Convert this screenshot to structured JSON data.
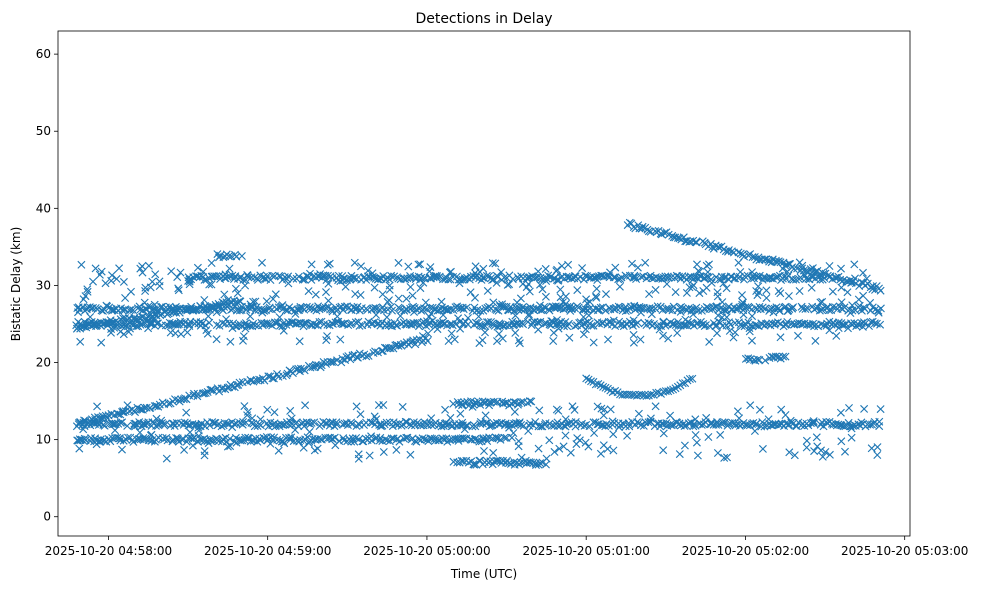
{
  "chart_data": {
    "type": "scatter",
    "title": "Detections in Delay",
    "xlabel": "Time (UTC)",
    "ylabel": "Bistatic Delay (km)",
    "marker": "x",
    "marker_color": "#1f77b4",
    "xlim": [
      "2025-10-20 04:57:41",
      "2025-10-20 05:03:02"
    ],
    "ylim": [
      -2.5,
      63
    ],
    "x_ticks": [
      "2025-10-20 04:58:00",
      "2025-10-20 04:59:00",
      "2025-10-20 05:00:00",
      "2025-10-20 05:01:00",
      "2025-10-20 05:02:00",
      "2025-10-20 05:03:00"
    ],
    "y_ticks": [
      0,
      10,
      20,
      30,
      40,
      50,
      60
    ],
    "grid": false,
    "data_time_range": [
      "2025-10-20 04:57:48",
      "2025-10-20 05:02:51"
    ],
    "tracks": [
      {
        "start": [
          "2025-10-20 04:57:48",
          12.0
        ],
        "end": [
          "2025-10-20 05:00:00",
          23.0
        ]
      },
      {
        "start": [
          "2025-10-20 05:01:15",
          38.0
        ],
        "end": [
          "2025-10-20 05:02:51",
          29.5
        ]
      },
      {
        "start": [
          "2025-10-20 04:57:48",
          24.5
        ],
        "end": [
          "2025-10-20 04:58:50",
          28.0
        ]
      },
      {
        "start": [
          "2025-10-20 04:57:48",
          12.0
        ],
        "end": [
          "2025-10-20 05:02:51",
          12.0
        ]
      },
      {
        "start": [
          "2025-10-20 04:57:48",
          10.0
        ],
        "end": [
          "2025-10-20 05:00:30",
          10.0
        ]
      },
      {
        "start": [
          "2025-10-20 04:57:48",
          25.0
        ],
        "end": [
          "2025-10-20 05:02:51",
          25.0
        ]
      },
      {
        "start": [
          "2025-10-20 04:57:48",
          27.0
        ],
        "end": [
          "2025-10-20 05:02:51",
          27.0
        ]
      },
      {
        "start": [
          "2025-10-20 04:58:30",
          31.0
        ],
        "end": [
          "2025-10-20 05:02:30",
          31.0
        ]
      },
      {
        "start": [
          "2025-10-20 05:00:10",
          14.7
        ],
        "end": [
          "2025-10-20 05:00:40",
          14.7
        ]
      },
      {
        "start": [
          "2025-10-20 05:00:10",
          7.0
        ],
        "end": [
          "2025-10-20 05:00:45",
          7.0
        ]
      },
      {
        "start": [
          "2025-10-20 05:02:00",
          20.5
        ],
        "end": [
          "2025-10-20 05:02:15",
          20.5
        ]
      },
      {
        "start": [
          "2025-10-20 04:58:40",
          33.8
        ],
        "end": [
          "2025-10-20 04:58:50",
          33.8
        ]
      }
    ],
    "arc": {
      "start": [
        "2025-10-20 05:01:00",
        18.0
      ],
      "vertex": [
        "2025-10-20 05:01:20",
        15.7
      ],
      "end": [
        "2025-10-20 05:01:40",
        18.0
      ]
    },
    "scatter_points_approx": 1600
  }
}
